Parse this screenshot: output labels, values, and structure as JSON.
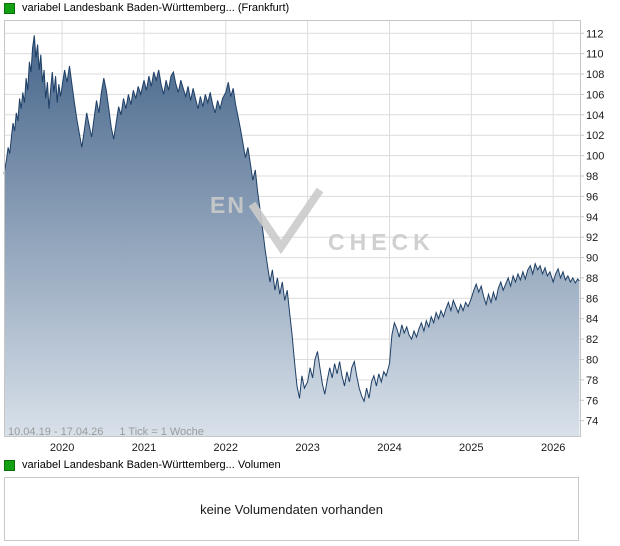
{
  "colors": {
    "accent_green": "#13a113",
    "accent_green_border": "#0a6e0a",
    "line": "#1e3f66",
    "area_top": "#46658a",
    "area_bottom": "#d9e1ea",
    "grid": "#dcdcdc",
    "border": "#c6c6c6",
    "axis_text": "#1a1a1a",
    "muted_text": "#9b9b9b",
    "watermark": "#cbcbcb"
  },
  "price_chart": {
    "title": "variabel Landesbank Baden-Württemberg... (Frankfurt)",
    "footer_range": "10.04.19 - 17.04.26",
    "footer_tick": "1 Tick = 1 Woche",
    "watermark_left": "EN",
    "watermark_right": "CHECK"
  },
  "volume_chart": {
    "title": "variabel Landesbank Baden-Württemberg... Volumen",
    "empty_message": "keine Volumendaten vorhanden"
  },
  "chart_data": {
    "type": "area",
    "title": "variabel Landesbank Baden-Württemberg... (Frankfurt)",
    "xlabel": "",
    "ylabel": "",
    "grid": true,
    "legend": false,
    "x_unit": "decimal_year",
    "x_range": [
      2019.29,
      2026.34
    ],
    "x_label_years": [
      2020,
      2021,
      2022,
      2023,
      2024,
      2025,
      2026
    ],
    "y_ticks": [
      74,
      76,
      78,
      80,
      82,
      84,
      86,
      88,
      90,
      92,
      94,
      96,
      98,
      100,
      102,
      104,
      106,
      108,
      110,
      112
    ],
    "y_axis_range": [
      72.4,
      113.3
    ],
    "series": [
      {
        "name": "variabel Landesbank Baden-Württemberg... (Frankfurt)",
        "points": [
          [
            2019.29,
            98.2
          ],
          [
            2019.32,
            99.6
          ],
          [
            2019.34,
            100.8
          ],
          [
            2019.36,
            100.2
          ],
          [
            2019.38,
            101.8
          ],
          [
            2019.4,
            103.2
          ],
          [
            2019.42,
            102.4
          ],
          [
            2019.44,
            104.2
          ],
          [
            2019.46,
            103.4
          ],
          [
            2019.48,
            105.6
          ],
          [
            2019.5,
            104.6
          ],
          [
            2019.52,
            106.2
          ],
          [
            2019.54,
            105.2
          ],
          [
            2019.56,
            107.6
          ],
          [
            2019.58,
            106.4
          ],
          [
            2019.6,
            109.2
          ],
          [
            2019.62,
            108.2
          ],
          [
            2019.64,
            110.6
          ],
          [
            2019.66,
            111.8
          ],
          [
            2019.68,
            109.6
          ],
          [
            2019.7,
            110.9
          ],
          [
            2019.72,
            108.4
          ],
          [
            2019.74,
            109.9
          ],
          [
            2019.76,
            107.2
          ],
          [
            2019.78,
            108.4
          ],
          [
            2019.8,
            105.6
          ],
          [
            2019.82,
            107.2
          ],
          [
            2019.84,
            104.6
          ],
          [
            2019.86,
            106.6
          ],
          [
            2019.88,
            108.2
          ],
          [
            2019.9,
            106.2
          ],
          [
            2019.92,
            107.8
          ],
          [
            2019.94,
            105.2
          ],
          [
            2019.96,
            107.0
          ],
          [
            2019.98,
            105.8
          ],
          [
            2020.0,
            106.8
          ],
          [
            2020.03,
            108.4
          ],
          [
            2020.06,
            107.2
          ],
          [
            2020.09,
            108.8
          ],
          [
            2020.12,
            107.0
          ],
          [
            2020.15,
            105.2
          ],
          [
            2020.18,
            103.6
          ],
          [
            2020.21,
            102.2
          ],
          [
            2020.24,
            100.8
          ],
          [
            2020.27,
            102.4
          ],
          [
            2020.3,
            104.2
          ],
          [
            2020.33,
            103.0
          ],
          [
            2020.36,
            101.8
          ],
          [
            2020.39,
            103.6
          ],
          [
            2020.42,
            105.4
          ],
          [
            2020.45,
            104.2
          ],
          [
            2020.48,
            106.2
          ],
          [
            2020.51,
            107.6
          ],
          [
            2020.54,
            106.4
          ],
          [
            2020.57,
            104.6
          ],
          [
            2020.6,
            102.8
          ],
          [
            2020.63,
            101.6
          ],
          [
            2020.66,
            103.2
          ],
          [
            2020.69,
            104.8
          ],
          [
            2020.72,
            104.0
          ],
          [
            2020.75,
            105.6
          ],
          [
            2020.78,
            104.6
          ],
          [
            2020.81,
            106.0
          ],
          [
            2020.84,
            105.0
          ],
          [
            2020.87,
            106.4
          ],
          [
            2020.9,
            105.6
          ],
          [
            2020.93,
            106.8
          ],
          [
            2020.96,
            106.0
          ],
          [
            2021.0,
            107.4
          ],
          [
            2021.03,
            106.4
          ],
          [
            2021.06,
            107.8
          ],
          [
            2021.09,
            106.8
          ],
          [
            2021.12,
            108.2
          ],
          [
            2021.15,
            107.4
          ],
          [
            2021.18,
            108.4
          ],
          [
            2021.21,
            107.0
          ],
          [
            2021.24,
            106.0
          ],
          [
            2021.27,
            107.4
          ],
          [
            2021.3,
            106.4
          ],
          [
            2021.33,
            107.8
          ],
          [
            2021.36,
            108.2
          ],
          [
            2021.39,
            107.0
          ],
          [
            2021.42,
            106.2
          ],
          [
            2021.45,
            107.4
          ],
          [
            2021.48,
            106.6
          ],
          [
            2021.51,
            105.8
          ],
          [
            2021.54,
            106.8
          ],
          [
            2021.57,
            105.4
          ],
          [
            2021.6,
            106.6
          ],
          [
            2021.63,
            105.6
          ],
          [
            2021.66,
            104.6
          ],
          [
            2021.69,
            105.8
          ],
          [
            2021.72,
            104.8
          ],
          [
            2021.75,
            106.0
          ],
          [
            2021.78,
            105.2
          ],
          [
            2021.81,
            106.2
          ],
          [
            2021.84,
            105.0
          ],
          [
            2021.87,
            104.2
          ],
          [
            2021.9,
            105.4
          ],
          [
            2021.93,
            104.6
          ],
          [
            2021.96,
            105.6
          ],
          [
            2022.0,
            106.2
          ],
          [
            2022.03,
            107.2
          ],
          [
            2022.06,
            105.8
          ],
          [
            2022.09,
            106.6
          ],
          [
            2022.12,
            105.0
          ],
          [
            2022.15,
            103.8
          ],
          [
            2022.18,
            102.6
          ],
          [
            2022.21,
            101.2
          ],
          [
            2022.24,
            99.8
          ],
          [
            2022.27,
            100.8
          ],
          [
            2022.3,
            99.2
          ],
          [
            2022.33,
            97.6
          ],
          [
            2022.36,
            98.6
          ],
          [
            2022.39,
            96.4
          ],
          [
            2022.42,
            94.6
          ],
          [
            2022.45,
            92.8
          ],
          [
            2022.48,
            90.8
          ],
          [
            2022.51,
            89.2
          ],
          [
            2022.54,
            87.6
          ],
          [
            2022.57,
            88.8
          ],
          [
            2022.6,
            86.8
          ],
          [
            2022.63,
            88.0
          ],
          [
            2022.66,
            86.4
          ],
          [
            2022.69,
            87.6
          ],
          [
            2022.72,
            85.8
          ],
          [
            2022.75,
            86.8
          ],
          [
            2022.78,
            84.6
          ],
          [
            2022.81,
            82.4
          ],
          [
            2022.84,
            79.8
          ],
          [
            2022.87,
            77.4
          ],
          [
            2022.9,
            76.2
          ],
          [
            2022.93,
            78.4
          ],
          [
            2022.96,
            77.2
          ],
          [
            2023.0,
            77.8
          ],
          [
            2023.03,
            79.2
          ],
          [
            2023.06,
            78.2
          ],
          [
            2023.09,
            80.0
          ],
          [
            2023.12,
            80.8
          ],
          [
            2023.15,
            79.2
          ],
          [
            2023.18,
            77.6
          ],
          [
            2023.21,
            76.6
          ],
          [
            2023.24,
            78.0
          ],
          [
            2023.27,
            79.2
          ],
          [
            2023.3,
            78.2
          ],
          [
            2023.33,
            79.6
          ],
          [
            2023.36,
            78.6
          ],
          [
            2023.39,
            79.8
          ],
          [
            2023.42,
            78.4
          ],
          [
            2023.45,
            77.4
          ],
          [
            2023.48,
            78.8
          ],
          [
            2023.51,
            77.8
          ],
          [
            2023.54,
            79.2
          ],
          [
            2023.57,
            79.8
          ],
          [
            2023.6,
            78.4
          ],
          [
            2023.63,
            77.2
          ],
          [
            2023.66,
            76.4
          ],
          [
            2023.69,
            75.9
          ],
          [
            2023.72,
            77.2
          ],
          [
            2023.75,
            76.2
          ],
          [
            2023.78,
            77.8
          ],
          [
            2023.81,
            78.4
          ],
          [
            2023.84,
            77.4
          ],
          [
            2023.87,
            78.6
          ],
          [
            2023.9,
            77.8
          ],
          [
            2023.93,
            78.8
          ],
          [
            2023.96,
            78.4
          ],
          [
            2024.0,
            79.6
          ],
          [
            2024.03,
            82.4
          ],
          [
            2024.06,
            83.6
          ],
          [
            2024.09,
            83.0
          ],
          [
            2024.12,
            82.2
          ],
          [
            2024.15,
            83.4
          ],
          [
            2024.18,
            82.6
          ],
          [
            2024.21,
            83.2
          ],
          [
            2024.24,
            82.4
          ],
          [
            2024.27,
            82.0
          ],
          [
            2024.3,
            82.8
          ],
          [
            2024.33,
            82.2
          ],
          [
            2024.36,
            83.0
          ],
          [
            2024.39,
            83.6
          ],
          [
            2024.42,
            82.8
          ],
          [
            2024.45,
            83.8
          ],
          [
            2024.48,
            83.2
          ],
          [
            2024.51,
            84.2
          ],
          [
            2024.54,
            83.6
          ],
          [
            2024.57,
            84.6
          ],
          [
            2024.6,
            84.0
          ],
          [
            2024.63,
            84.8
          ],
          [
            2024.66,
            84.2
          ],
          [
            2024.69,
            85.0
          ],
          [
            2024.72,
            85.6
          ],
          [
            2024.75,
            84.8
          ],
          [
            2024.78,
            85.8
          ],
          [
            2024.81,
            85.2
          ],
          [
            2024.84,
            84.6
          ],
          [
            2024.87,
            85.4
          ],
          [
            2024.9,
            84.8
          ],
          [
            2024.93,
            85.6
          ],
          [
            2024.96,
            85.2
          ],
          [
            2025.0,
            86.0
          ],
          [
            2025.03,
            86.8
          ],
          [
            2025.06,
            87.4
          ],
          [
            2025.09,
            86.6
          ],
          [
            2025.12,
            87.2
          ],
          [
            2025.15,
            86.2
          ],
          [
            2025.18,
            85.4
          ],
          [
            2025.21,
            86.4
          ],
          [
            2025.24,
            85.6
          ],
          [
            2025.27,
            86.6
          ],
          [
            2025.3,
            85.8
          ],
          [
            2025.33,
            87.0
          ],
          [
            2025.36,
            87.6
          ],
          [
            2025.39,
            86.8
          ],
          [
            2025.42,
            87.4
          ],
          [
            2025.45,
            88.0
          ],
          [
            2025.48,
            87.2
          ],
          [
            2025.51,
            88.2
          ],
          [
            2025.54,
            87.6
          ],
          [
            2025.57,
            88.4
          ],
          [
            2025.6,
            87.8
          ],
          [
            2025.63,
            88.6
          ],
          [
            2025.66,
            87.9
          ],
          [
            2025.69,
            88.8
          ],
          [
            2025.72,
            89.2
          ],
          [
            2025.75,
            88.4
          ],
          [
            2025.78,
            89.4
          ],
          [
            2025.81,
            88.8
          ],
          [
            2025.84,
            89.2
          ],
          [
            2025.87,
            88.4
          ],
          [
            2025.9,
            89.0
          ],
          [
            2025.93,
            88.2
          ],
          [
            2025.96,
            88.6
          ],
          [
            2026.0,
            87.6
          ],
          [
            2026.03,
            88.4
          ],
          [
            2026.06,
            88.9
          ],
          [
            2026.09,
            88.0
          ],
          [
            2026.12,
            88.6
          ],
          [
            2026.15,
            87.8
          ],
          [
            2026.18,
            88.2
          ],
          [
            2026.21,
            87.6
          ],
          [
            2026.24,
            88.0
          ],
          [
            2026.27,
            87.5
          ],
          [
            2026.3,
            87.9
          ],
          [
            2026.32,
            87.7
          ]
        ]
      }
    ]
  }
}
